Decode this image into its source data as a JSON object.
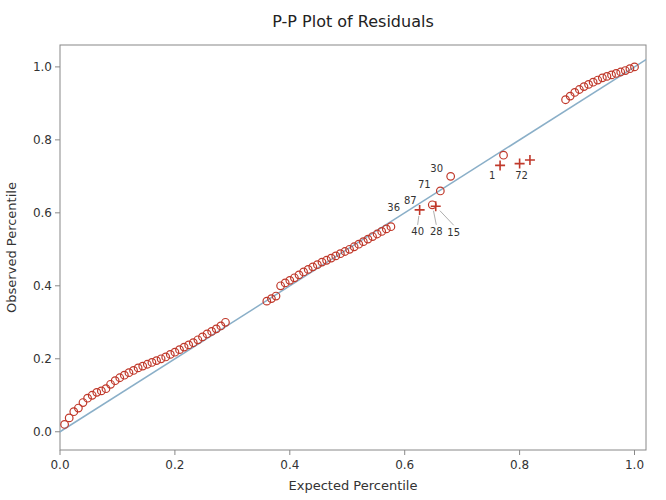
{
  "chart_data": {
    "type": "scatter",
    "title": "P-P Plot of Residuals",
    "x_label": "Expected Percentile",
    "y_label": "Observed Percentile",
    "xlim": [
      0.0,
      1.02
    ],
    "ylim": [
      -0.05,
      1.06
    ],
    "xticks": [
      {
        "value": 0.0,
        "label": "0.0"
      },
      0.2,
      0.4,
      0.6,
      0.8,
      {
        "value": 1.0,
        "label": "1.0"
      }
    ],
    "yticks": [
      {
        "value": 0.0,
        "label": "0.0"
      },
      0.2,
      0.4,
      0.6,
      0.8,
      {
        "value": 1.0,
        "label": "1.0"
      }
    ],
    "grid": false,
    "series": [
      {
        "type": "line",
        "color": "#8aafc8",
        "x": [
          -0.05,
          1.05
        ],
        "values": [
          -0.05,
          1.05
        ]
      },
      {
        "type": "scatter",
        "marker": "circle",
        "color": "#c0392b",
        "x": [
          0.008,
          0.016,
          0.024,
          0.032,
          0.04,
          0.048,
          0.056,
          0.064,
          0.072,
          0.08,
          0.088,
          0.096,
          0.104,
          0.112,
          0.12,
          0.128,
          0.136,
          0.144,
          0.152,
          0.16,
          0.168,
          0.176,
          0.184,
          0.192,
          0.2,
          0.208,
          0.216,
          0.224,
          0.232,
          0.24,
          0.248,
          0.256,
          0.264,
          0.272,
          0.28,
          0.288,
          0.36,
          0.368,
          0.376,
          0.384,
          0.392,
          0.4,
          0.408,
          0.416,
          0.424,
          0.432,
          0.44,
          0.448,
          0.456,
          0.464,
          0.472,
          0.48,
          0.488,
          0.496,
          0.504,
          0.512,
          0.52,
          0.528,
          0.536,
          0.544,
          0.552,
          0.56,
          0.568,
          0.576,
          0.88,
          0.888,
          0.896,
          0.904,
          0.912,
          0.92,
          0.928,
          0.936,
          0.944,
          0.952,
          0.96,
          0.968,
          0.976,
          0.984,
          0.992,
          1.0
        ],
        "values": [
          0.02,
          0.038,
          0.055,
          0.065,
          0.08,
          0.092,
          0.1,
          0.108,
          0.112,
          0.118,
          0.13,
          0.14,
          0.148,
          0.155,
          0.162,
          0.168,
          0.175,
          0.18,
          0.185,
          0.19,
          0.195,
          0.2,
          0.205,
          0.212,
          0.218,
          0.225,
          0.232,
          0.238,
          0.244,
          0.252,
          0.26,
          0.268,
          0.275,
          0.282,
          0.29,
          0.3,
          0.358,
          0.365,
          0.372,
          0.4,
          0.408,
          0.415,
          0.422,
          0.43,
          0.438,
          0.445,
          0.452,
          0.458,
          0.465,
          0.47,
          0.476,
          0.482,
          0.488,
          0.494,
          0.5,
          0.507,
          0.514,
          0.521,
          0.528,
          0.535,
          0.542,
          0.549,
          0.556,
          0.562,
          0.91,
          0.92,
          0.93,
          0.938,
          0.946,
          0.952,
          0.958,
          0.964,
          0.97,
          0.974,
          0.978,
          0.982,
          0.986,
          0.99,
          0.995,
          1.0
        ]
      },
      {
        "type": "scatter",
        "marker": "circle",
        "color": "#c0392b",
        "x": [
          0.648,
          0.662,
          0.68,
          0.772
        ],
        "values": [
          0.622,
          0.66,
          0.7,
          0.758
        ]
      },
      {
        "type": "scatter",
        "marker": "cross",
        "color": "#c0392b",
        "x": [
          0.626,
          0.654,
          0.766,
          0.8,
          0.818
        ],
        "values": [
          0.608,
          0.618,
          0.73,
          0.735,
          0.745
        ]
      }
    ],
    "annotations": [
      {
        "text": "30",
        "x": 0.68,
        "y": 0.7
      },
      {
        "text": "71",
        "x": 0.662,
        "y": 0.66
      },
      {
        "text": "87",
        "x": 0.648,
        "y": 0.622
      },
      {
        "text": "36",
        "x": 0.626,
        "y": 0.608
      },
      {
        "text": "28",
        "x": 0.648,
        "y": 0.622
      },
      {
        "text": "15",
        "x": 0.654,
        "y": 0.618
      },
      {
        "text": "40",
        "x": 0.626,
        "y": 0.608
      },
      {
        "text": "1",
        "x": 0.766,
        "y": 0.73
      },
      {
        "text": "72",
        "x": 0.8,
        "y": 0.735
      }
    ]
  }
}
